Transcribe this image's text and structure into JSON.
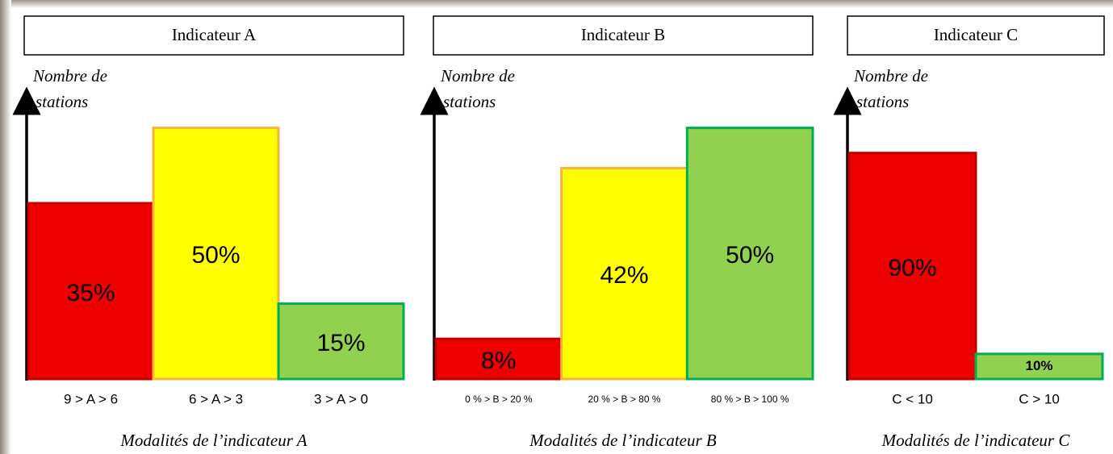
{
  "chart_data": [
    {
      "type": "bar",
      "title": "Indicateur A",
      "y_label": [
        "Nombre de",
        "stations"
      ],
      "x_label": "Modalités de l’indicateur A",
      "categories": [
        "9 > A > 6",
        "6 > A > 3",
        "3 > A > 0"
      ],
      "values": [
        35,
        50,
        15
      ],
      "value_labels": [
        "35%",
        "50%",
        "15%"
      ],
      "colors": [
        "#ee0000",
        "#ffff00",
        "#92d050"
      ],
      "edge_colors": [
        "#c00000",
        "#f5b43c",
        "#00b050"
      ],
      "ylim": [
        0,
        57
      ]
    },
    {
      "type": "bar",
      "title": "Indicateur B",
      "y_label": [
        "Nombre de",
        "stations"
      ],
      "x_label": "Modalités de l’indicateur B",
      "categories": [
        "0 % > B > 20 %",
        "20 % > B > 80 %",
        "80 % > B > 100 %"
      ],
      "values": [
        8,
        42,
        50
      ],
      "value_labels": [
        "8%",
        "42%",
        "50%"
      ],
      "colors": [
        "#ee0000",
        "#ffff00",
        "#92d050"
      ],
      "edge_colors": [
        "#c00000",
        "#f5b43c",
        "#00b050"
      ],
      "ylim": [
        0,
        57
      ]
    },
    {
      "type": "bar",
      "title": "Indicateur C",
      "y_label": [
        "Nombre de",
        "stations"
      ],
      "x_label": "Modalités de l’indicateur C",
      "categories": [
        "C < 10",
        "C > 10"
      ],
      "values": [
        90,
        10
      ],
      "value_labels": [
        "90%",
        "10%"
      ],
      "colors": [
        "#ee0000",
        "#92d050"
      ],
      "edge_colors": [
        "#c00000",
        "#00b050"
      ],
      "ylim": [
        0,
        114
      ]
    }
  ]
}
